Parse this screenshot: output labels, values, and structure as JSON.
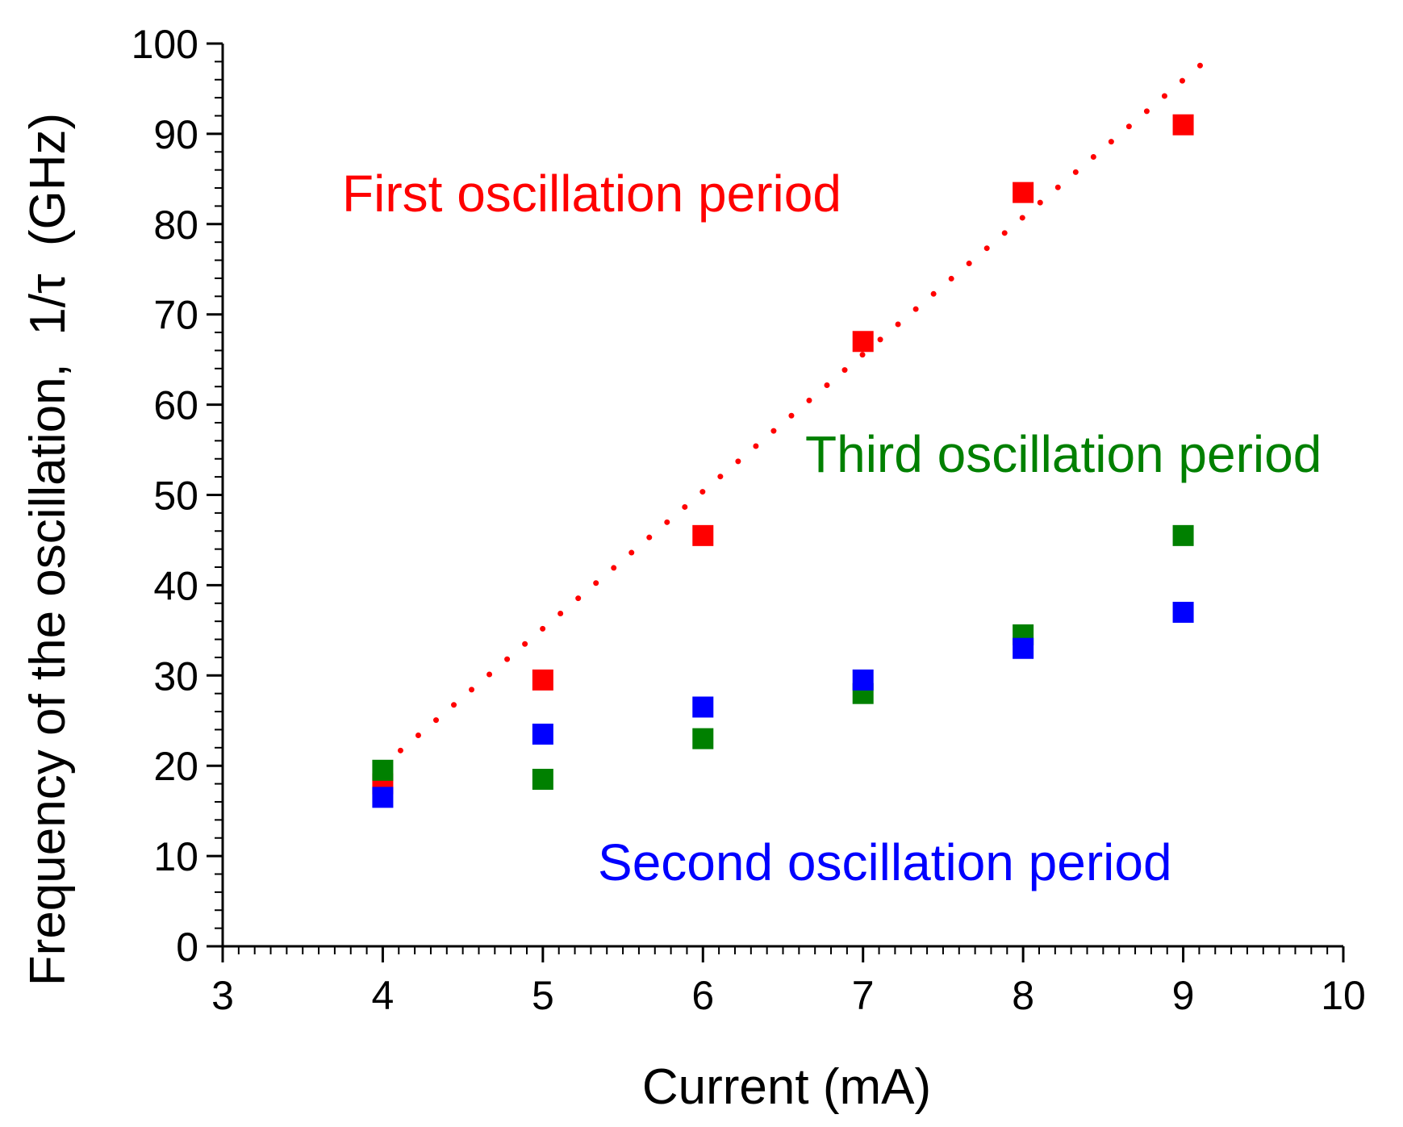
{
  "chart_data": {
    "type": "scatter",
    "title": "",
    "xlabel": "Current (mA)",
    "ylabel": "Frequency of the oscillation,  1/τ  (GHz)",
    "xlim": [
      3,
      10
    ],
    "ylim": [
      0,
      100
    ],
    "xticks": [
      3,
      4,
      5,
      6,
      7,
      8,
      9,
      10
    ],
    "yticks": [
      0,
      10,
      20,
      30,
      40,
      50,
      60,
      70,
      80,
      90,
      100
    ],
    "grid": false,
    "series": [
      {
        "name": "First oscillation period",
        "color": "#ff0000",
        "x": [
          4,
          5,
          6,
          7,
          8,
          9
        ],
        "y": [
          18,
          29.5,
          45.5,
          67,
          83.5,
          91
        ]
      },
      {
        "name": "Second oscillation period",
        "color": "#0000ff",
        "x": [
          4,
          5,
          6,
          7,
          8,
          9
        ],
        "y": [
          16.5,
          23.5,
          26.5,
          29.5,
          33,
          37
        ]
      },
      {
        "name": "Third oscillation period",
        "color": "#008000",
        "x": [
          4,
          5,
          6,
          7,
          8,
          9
        ],
        "y": [
          19.5,
          18.5,
          23,
          28,
          34.5,
          45.5
        ]
      }
    ],
    "fit_line": {
      "color": "#ff0000",
      "style": "dotted",
      "x": [
        4,
        9.2
      ],
      "y": [
        20,
        99
      ]
    },
    "annotations": [
      {
        "text": "First oscillation period",
        "color": "#ff0000"
      },
      {
        "text": "Third oscillation period",
        "color": "#008000"
      },
      {
        "text": "Second oscillation period",
        "color": "#0000ff"
      }
    ]
  }
}
